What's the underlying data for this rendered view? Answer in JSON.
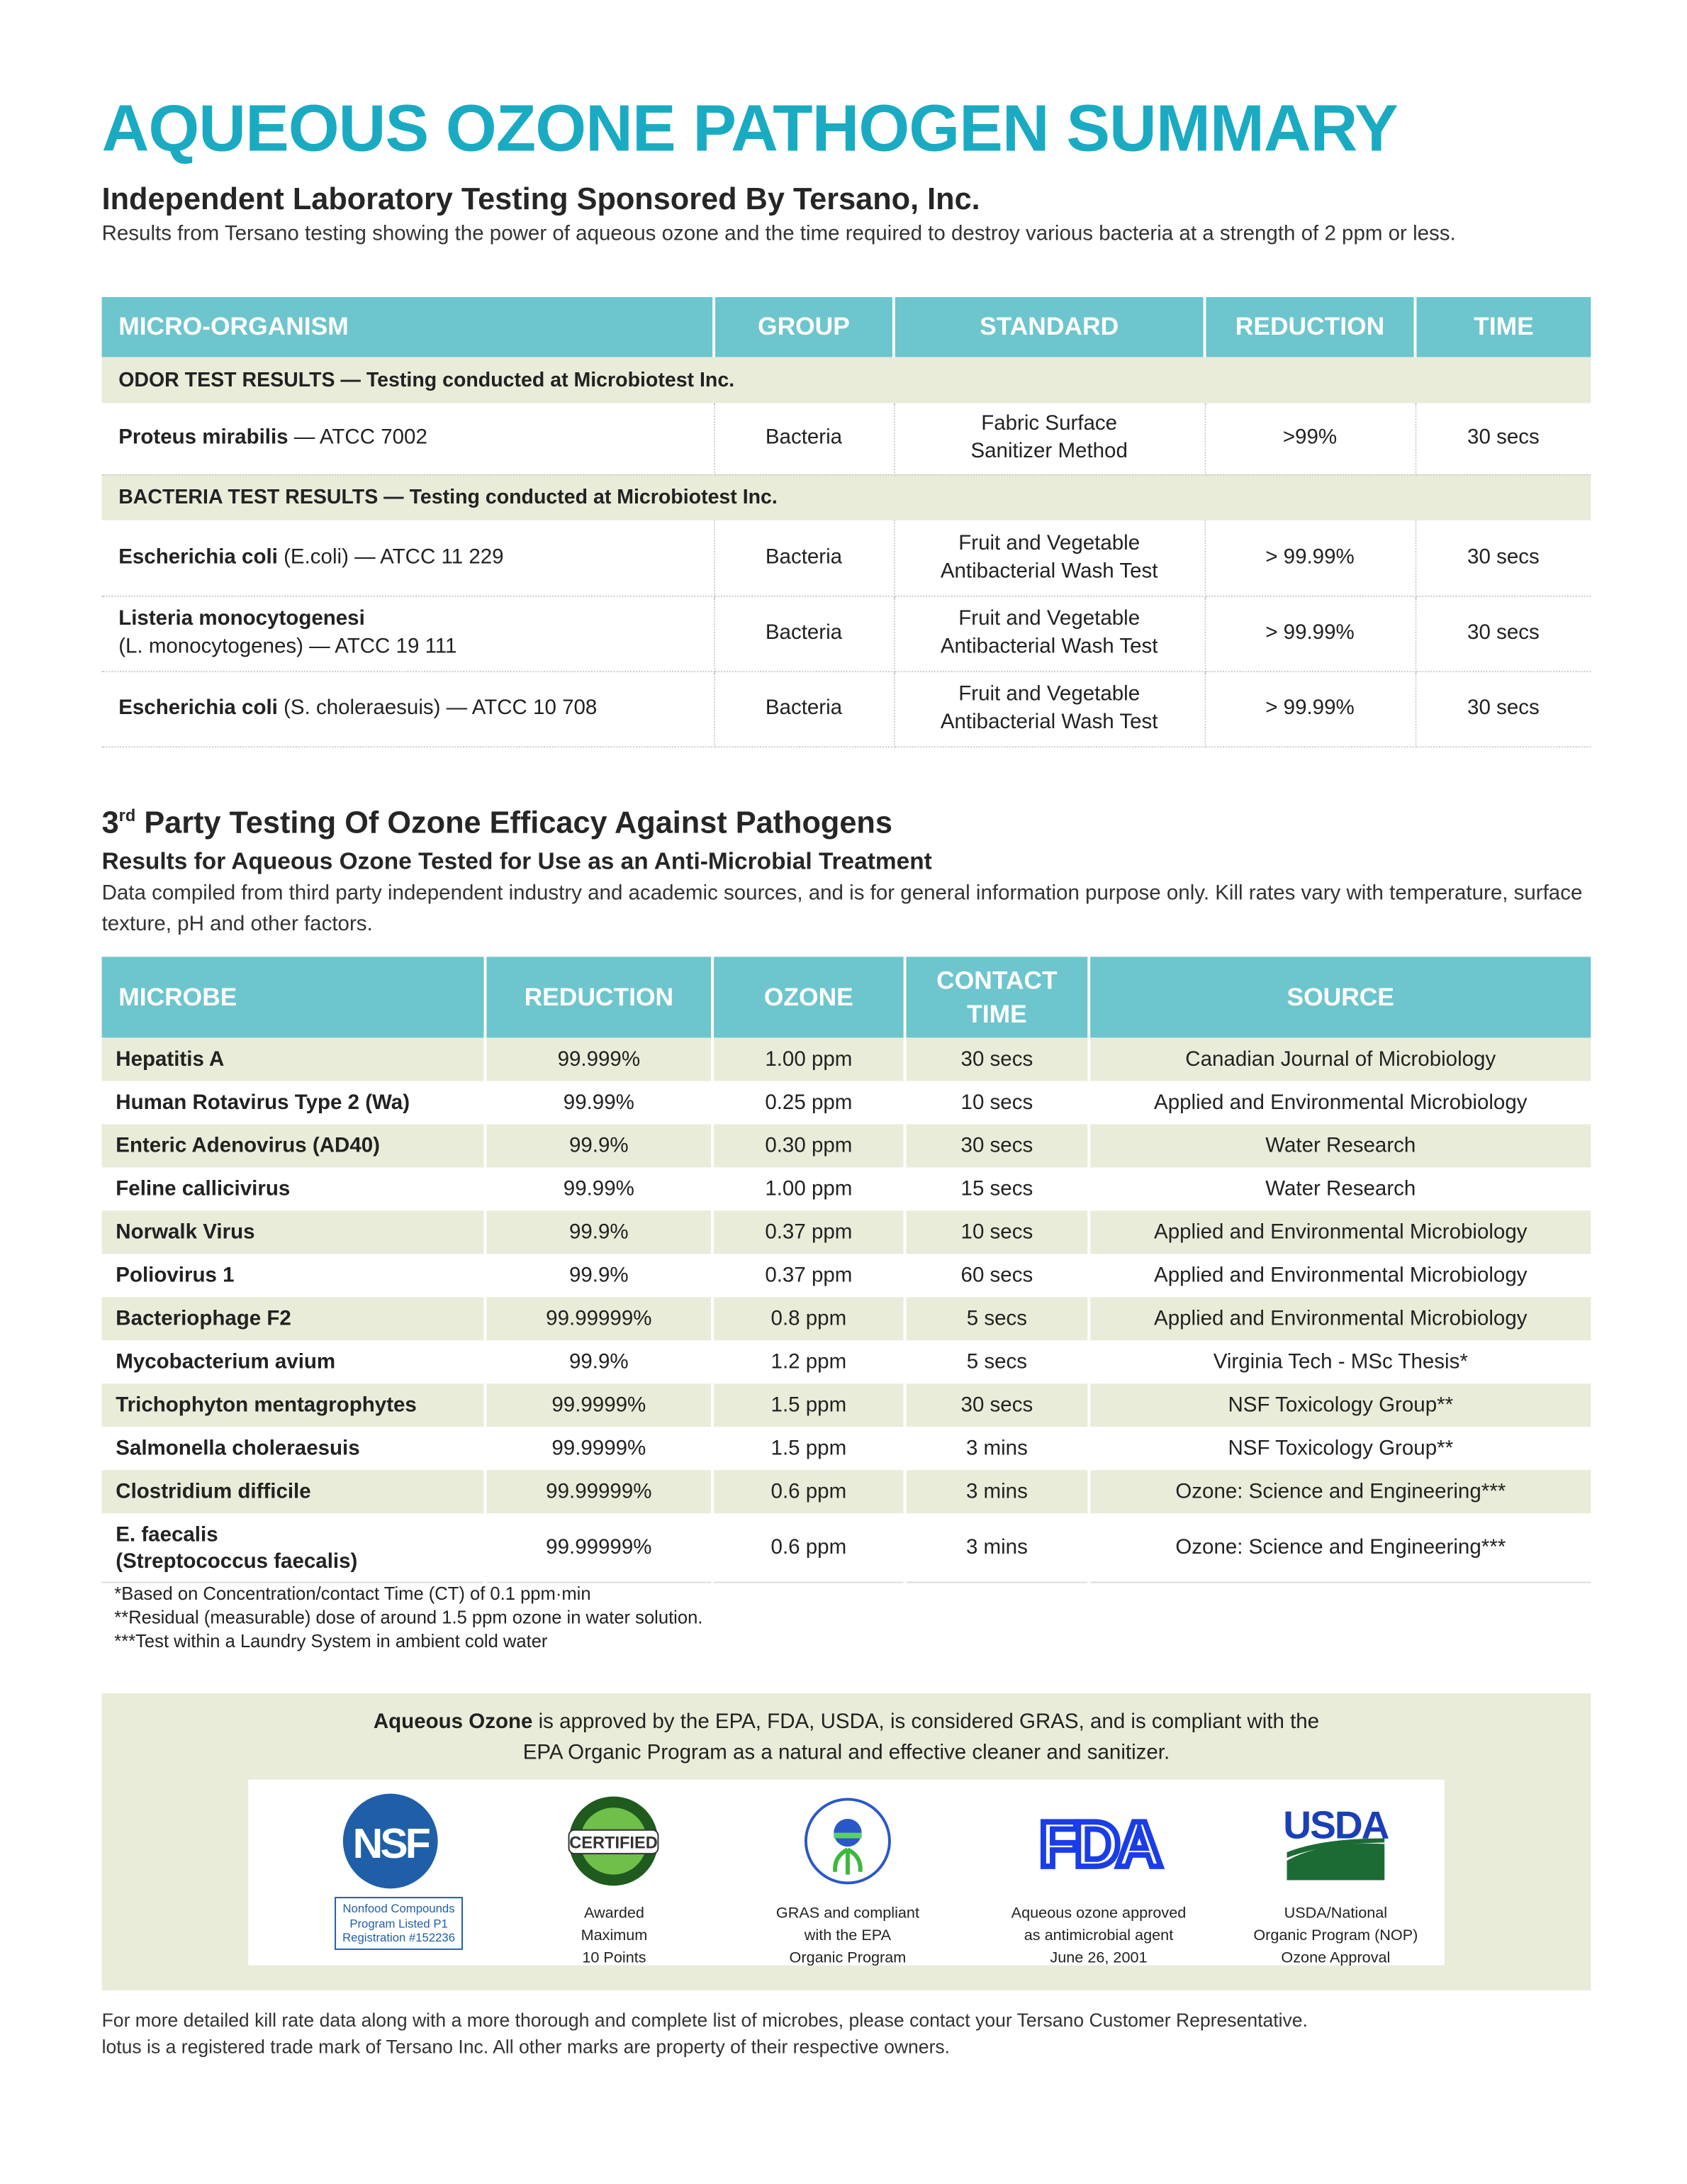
{
  "title": "AQUEOUS OZONE PATHOGEN SUMMARY",
  "section1": {
    "heading": "Independent Laboratory Testing Sponsored By Tersano, Inc.",
    "intro": "Results from Tersano testing showing the power of aqueous ozone and the time required to destroy various bacteria at a strength of 2 ppm or less.",
    "columns": [
      "MICRO-ORGANISM",
      "GROUP",
      "STANDARD",
      "REDUCTION",
      "TIME"
    ],
    "groups": [
      {
        "label_bold": "ODOR TEST RESULTS",
        "label_rest": " — Testing conducted at Microbiotest Inc.",
        "rows": [
          {
            "name": "Proteus mirabilis",
            "detail": " — ATCC 7002",
            "group": "Bacteria",
            "standard": [
              "Fabric Surface",
              "Sanitizer Method"
            ],
            "reduction": ">99%",
            "time": "30 secs"
          }
        ]
      },
      {
        "label_bold": "BACTERIA TEST RESULTS",
        "label_rest": " — Testing conducted at Microbiotest Inc.",
        "rows": [
          {
            "name": "Escherichia coli",
            "detail": " (E.coli) — ATCC 11 229",
            "group": "Bacteria",
            "standard": [
              "Fruit and Vegetable",
              "Antibacterial Wash Test"
            ],
            "reduction": "> 99.99%",
            "time": "30 secs"
          },
          {
            "name": "Listeria monocytogenesi",
            "detail": "(L. monocytogenes) — ATCC 19 111",
            "group": "Bacteria",
            "standard": [
              "Fruit and Vegetable",
              "Antibacterial Wash Test"
            ],
            "reduction": "> 99.99%",
            "time": "30 secs"
          },
          {
            "name": "Escherichia coli",
            "detail": " (S. choleraesuis) — ATCC 10 708",
            "group": "Bacteria",
            "standard": [
              "Fruit and Vegetable",
              "Antibacterial Wash Test"
            ],
            "reduction": "> 99.99%",
            "time": "30 secs"
          }
        ]
      }
    ]
  },
  "section2": {
    "heading_pre": "3",
    "heading_sup": "rd",
    "heading_post": " Party Testing Of Ozone Efficacy Against Pathogens",
    "subheading": "Results for Aqueous Ozone Tested for Use as an Anti-Microbial Treatment",
    "intro": "Data compiled from third party independent industry and academic sources, and is for general information purpose only. Kill rates vary with temperature, surface texture, pH and other factors.",
    "columns": [
      "MICROBE",
      "REDUCTION",
      "OZONE",
      "CONTACT TIME",
      "SOURCE"
    ],
    "rows": [
      [
        "Hepatitis A",
        "99.999%",
        "1.00 ppm",
        "30 secs",
        "Canadian Journal of Microbiology"
      ],
      [
        "Human Rotavirus Type 2 (Wa)",
        "99.99%",
        "0.25 ppm",
        "10 secs",
        "Applied and Environmental Microbiology"
      ],
      [
        "Enteric Adenovirus (AD40)",
        "99.9%",
        "0.30 ppm",
        "30 secs",
        "Water Research"
      ],
      [
        "Feline callicivirus",
        "99.99%",
        "1.00 ppm",
        "15 secs",
        "Water Research"
      ],
      [
        "Norwalk Virus",
        "99.9%",
        "0.37 ppm",
        "10 secs",
        "Applied and Environmental Microbiology"
      ],
      [
        "Poliovirus 1",
        "99.9%",
        "0.37 ppm",
        "60 secs",
        "Applied and Environmental Microbiology"
      ],
      [
        "Bacteriophage F2",
        "99.99999%",
        "0.8 ppm",
        "5 secs",
        "Applied and Environmental Microbiology"
      ],
      [
        "Mycobacterium avium",
        "99.9%",
        "1.2 ppm",
        "5 secs",
        "Virginia Tech - MSc Thesis*"
      ],
      [
        "Trichophyton mentagrophytes",
        "99.9999%",
        "1.5 ppm",
        "30 secs",
        "NSF Toxicology Group**"
      ],
      [
        "Salmonella choleraesuis",
        "99.9999%",
        "1.5 ppm",
        "3 mins",
        "NSF Toxicology Group**"
      ],
      [
        "Clostridium difficile",
        "99.99999%",
        "0.6 ppm",
        "3 mins",
        "Ozone: Science and Engineering***"
      ],
      [
        "E. faecalis\n(Streptococcus faecalis)",
        "99.99999%",
        "0.6 ppm",
        "3 mins",
        "Ozone: Science and Engineering***"
      ]
    ],
    "footnotes": [
      "*Based on Concentration/contact Time (CT) of 0.1 ppm·min",
      "**Residual (measurable) dose of around 1.5 ppm ozone in water solution.",
      "***Test within a Laundry System in ambient cold water"
    ]
  },
  "approval": {
    "bold": "Aqueous Ozone",
    "line1": " is approved by the EPA, FDA, USDA, is considered GRAS, and is compliant with the",
    "line2": "EPA Organic Program as a natural and effective cleaner and sanitizer.",
    "logos": [
      {
        "icon": "nsf-logo",
        "mark": "NSF",
        "caption": [
          "Nonfood Compounds",
          "Program Listed P1",
          "Registration #152236"
        ]
      },
      {
        "icon": "green-clean-certified-logo",
        "mark": "CERTIFIED",
        "caption": [
          "Awarded",
          "Maximum",
          "10 Points"
        ]
      },
      {
        "icon": "epa-seal-logo",
        "mark": "UNITED STATES ENVIRONMENTAL PROTECTION AGENCY",
        "caption": [
          "GRAS and compliant",
          "with the  EPA",
          "Organic Program"
        ]
      },
      {
        "icon": "fda-logo",
        "mark": "FDA",
        "caption": [
          "Aqueous ozone approved",
          "as antimicrobial agent",
          "June 26, 2001"
        ]
      },
      {
        "icon": "usda-logo",
        "mark": "USDA",
        "caption": [
          "USDA/National",
          "Organic Program (NOP)",
          "Ozone Approval"
        ]
      }
    ]
  },
  "footer": [
    "For more detailed kill rate data along with a more thorough and complete list of microbes, please contact your Tersano Customer Representative.",
    "lotus is a registered trade mark of Tersano Inc. All other marks are property of their respective owners."
  ],
  "colors": {
    "title": "#1aabc3",
    "table_header": "#6dc5cd",
    "row_alt": "#e9ecd9",
    "nsf_blue": "#1f5fa8",
    "fda_blue": "#1a3de6",
    "usda_green": "#1c6b35"
  }
}
